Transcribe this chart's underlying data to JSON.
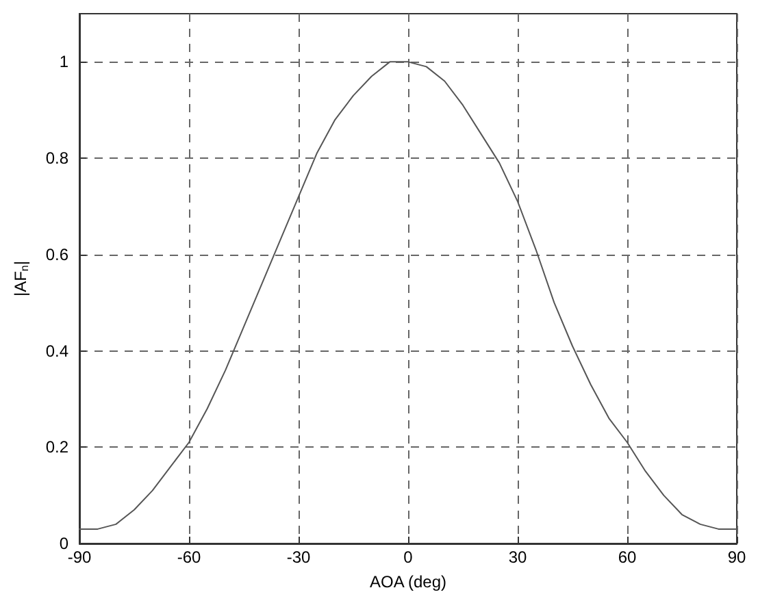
{
  "chart_data": {
    "type": "line",
    "xlabel": "AOA (deg)",
    "ylabel": "|AF$_{n}$|",
    "x": [
      -90,
      -85,
      -80,
      -75,
      -70,
      -65,
      -60,
      -55,
      -50,
      -45,
      -40,
      -35,
      -30,
      -25,
      -20,
      -15,
      -10,
      -5,
      0,
      5,
      10,
      15,
      20,
      25,
      30,
      35,
      40,
      45,
      50,
      55,
      60,
      65,
      70,
      75,
      80,
      85,
      90
    ],
    "series": [
      {
        "color": "#555555",
        "values": [
          0.03,
          0.03,
          0.04,
          0.07,
          0.11,
          0.16,
          0.21,
          0.28,
          0.36,
          0.45,
          0.54,
          0.63,
          0.72,
          0.81,
          0.88,
          0.93,
          0.97,
          1.0,
          1.0,
          0.99,
          0.96,
          0.91,
          0.85,
          0.79,
          0.71,
          0.61,
          0.5,
          0.41,
          0.33,
          0.26,
          0.21,
          0.15,
          0.1,
          0.06,
          0.04,
          0.03,
          0.03
        ]
      }
    ],
    "xlim": [
      -90,
      90
    ],
    "xticks": [
      -90,
      -60,
      -30,
      0,
      30,
      60,
      90
    ],
    "ylim": [
      0,
      1.1
    ],
    "yticks": [
      0,
      0.2,
      0.4,
      0.6,
      0.8,
      1
    ],
    "grid": true,
    "marker": "none",
    "line_style": "solid"
  }
}
